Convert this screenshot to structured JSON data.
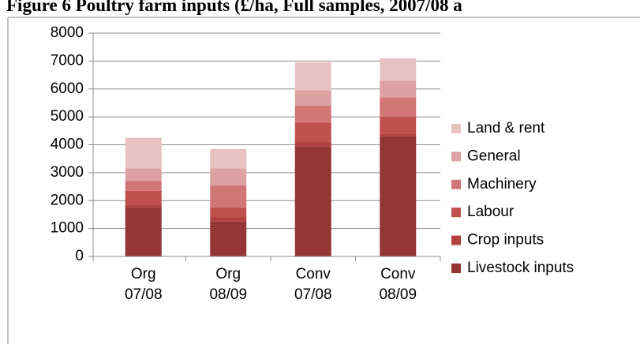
{
  "chart_data": {
    "type": "stacked_bar",
    "title": "Figure 6 Poultry farm inputs (£/ha, Full samples, 2007/08 a",
    "categories": [
      "Org 07/08",
      "Org 08/09",
      "Conv 07/08",
      "Conv 08/09"
    ],
    "series": [
      {
        "name": "Livestock inputs",
        "color": "#943634",
        "values": [
          1750,
          1250,
          3950,
          4300
        ]
      },
      {
        "name": "Crop inputs",
        "color": "#b0413e",
        "values": [
          100,
          150,
          150,
          100
        ]
      },
      {
        "name": "Labour",
        "color": "#c0504d",
        "values": [
          500,
          350,
          700,
          600
        ]
      },
      {
        "name": "Machinery",
        "color": "#d07775",
        "values": [
          350,
          800,
          600,
          700
        ]
      },
      {
        "name": "General",
        "color": "#dca1a1",
        "values": [
          450,
          600,
          550,
          600
        ]
      },
      {
        "name": "Land & rent",
        "color": "#e8c2c3",
        "values": [
          1100,
          700,
          1000,
          800
        ]
      }
    ],
    "ylim": [
      0,
      8000
    ],
    "yticks": [
      0,
      1000,
      2000,
      3000,
      4000,
      5000,
      6000,
      7000,
      8000
    ],
    "grid": true,
    "legend": "right"
  }
}
